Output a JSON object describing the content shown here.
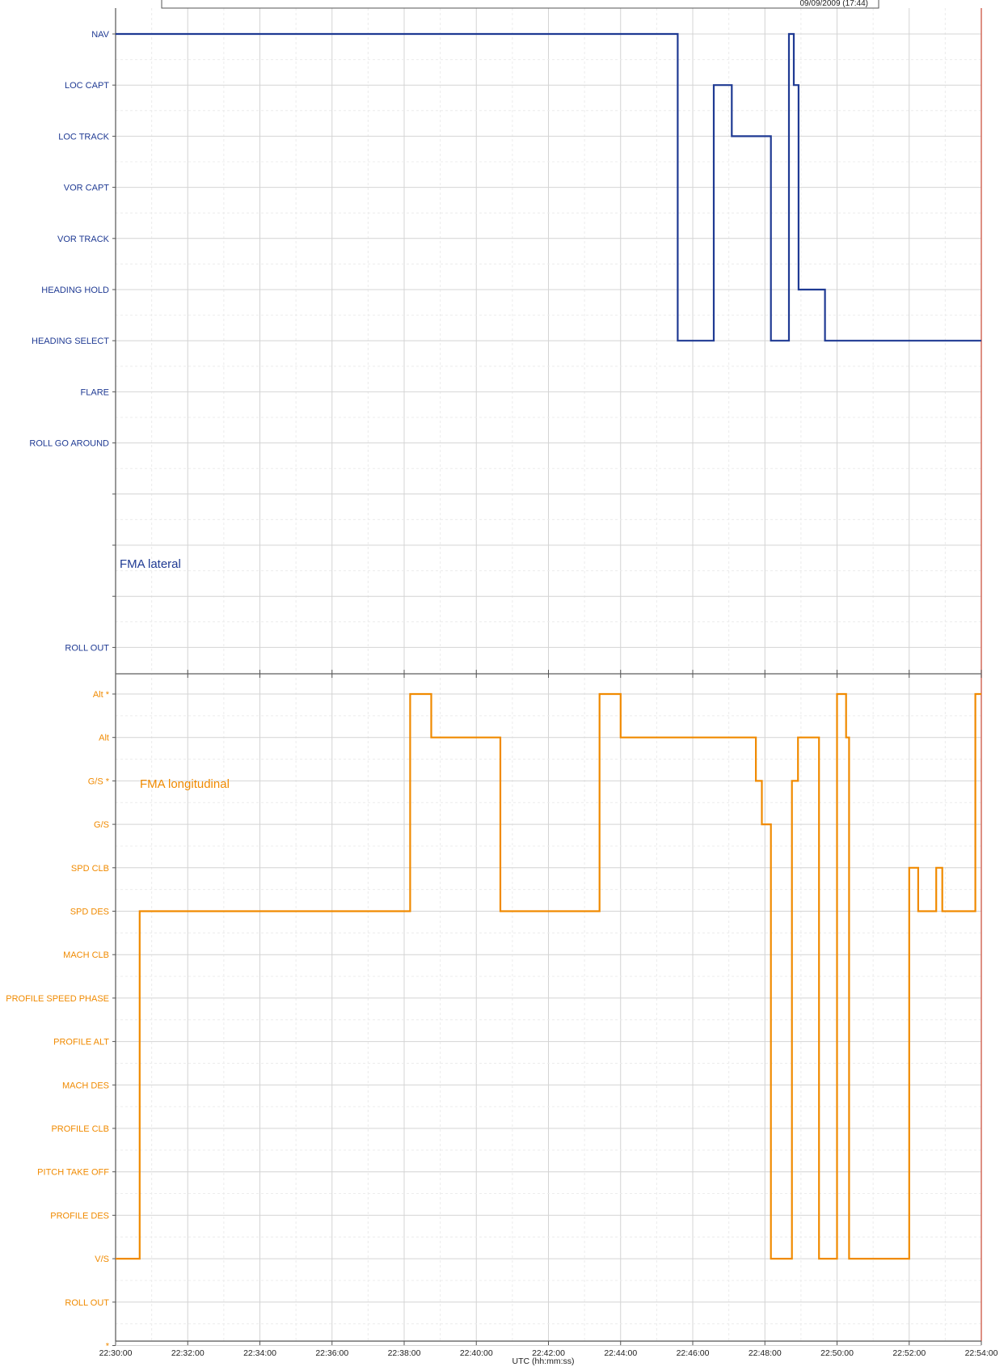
{
  "header": {
    "date_stamp": "09/09/2009 (17:44)"
  },
  "chart_data": [
    {
      "type": "line",
      "title": "FMA lateral",
      "color": "#1f3a93",
      "step": true,
      "y_categories": [
        "NAV",
        "LOC CAPT",
        "LOC TRACK",
        "VOR CAPT",
        "VOR TRACK",
        "HEADING HOLD",
        "HEADING SELECT",
        "FLARE",
        "ROLL GO AROUND",
        "",
        "",
        "",
        "ROLL OUT"
      ],
      "x_unit": "UTC (hh:mm:ss)",
      "xlim": [
        "22:30:00",
        "22:54:00"
      ],
      "series": [
        {
          "points": [
            [
              "22:30:00",
              "NAV"
            ],
            [
              "22:45:35",
              "NAV"
            ],
            [
              "22:45:35",
              "HEADING SELECT"
            ],
            [
              "22:46:35",
              "HEADING SELECT"
            ],
            [
              "22:46:35",
              "LOC CAPT"
            ],
            [
              "22:47:05",
              "LOC CAPT"
            ],
            [
              "22:47:05",
              "LOC TRACK"
            ],
            [
              "22:48:10",
              "LOC TRACK"
            ],
            [
              "22:48:10",
              "HEADING SELECT"
            ],
            [
              "22:48:40",
              "HEADING SELECT"
            ],
            [
              "22:48:40",
              "NAV"
            ],
            [
              "22:48:48",
              "NAV"
            ],
            [
              "22:48:48",
              "LOC CAPT"
            ],
            [
              "22:48:56",
              "LOC CAPT"
            ],
            [
              "22:48:56",
              "HEADING HOLD"
            ],
            [
              "22:49:40",
              "HEADING HOLD"
            ],
            [
              "22:49:40",
              "HEADING SELECT"
            ],
            [
              "22:54:00",
              "HEADING SELECT"
            ]
          ]
        }
      ]
    },
    {
      "type": "line",
      "title": "FMA longitudinal",
      "color": "#f08a00",
      "step": true,
      "y_categories": [
        "Alt *",
        "Alt",
        "G/S *",
        "G/S",
        "SPD CLB",
        "SPD DES",
        "MACH CLB",
        "PROFILE SPEED PHASE",
        "PROFILE ALT",
        "MACH DES",
        "PROFILE CLB",
        "PITCH TAKE OFF",
        "PROFILE DES",
        "V/S",
        "ROLL OUT",
        "*"
      ],
      "x_unit": "UTC (hh:mm:ss)",
      "xlim": [
        "22:30:00",
        "22:54:00"
      ],
      "xticks": [
        "22:30:00",
        "22:32:00",
        "22:34:00",
        "22:36:00",
        "22:38:00",
        "22:40:00",
        "22:42:00",
        "22:44:00",
        "22:46:00",
        "22:48:00",
        "22:50:00",
        "22:52:00",
        "22:54:00"
      ],
      "series": [
        {
          "points": [
            [
              "22:30:00",
              "V/S"
            ],
            [
              "22:30:40",
              "V/S"
            ],
            [
              "22:30:40",
              "SPD DES"
            ],
            [
              "22:38:10",
              "SPD DES"
            ],
            [
              "22:38:10",
              "Alt *"
            ],
            [
              "22:38:45",
              "Alt *"
            ],
            [
              "22:38:45",
              "Alt"
            ],
            [
              "22:40:40",
              "Alt"
            ],
            [
              "22:40:40",
              "SPD DES"
            ],
            [
              "22:43:25",
              "SPD DES"
            ],
            [
              "22:43:25",
              "Alt *"
            ],
            [
              "22:44:00",
              "Alt *"
            ],
            [
              "22:44:00",
              "Alt"
            ],
            [
              "22:47:45",
              "Alt"
            ],
            [
              "22:47:45",
              "G/S *"
            ],
            [
              "22:47:55",
              "G/S *"
            ],
            [
              "22:47:55",
              "G/S"
            ],
            [
              "22:48:10",
              "G/S"
            ],
            [
              "22:48:10",
              "V/S"
            ],
            [
              "22:48:45",
              "V/S"
            ],
            [
              "22:48:45",
              "G/S *"
            ],
            [
              "22:48:55",
              "G/S *"
            ],
            [
              "22:48:55",
              "Alt"
            ],
            [
              "22:49:30",
              "Alt"
            ],
            [
              "22:49:30",
              "V/S"
            ],
            [
              "22:50:00",
              "V/S"
            ],
            [
              "22:50:00",
              "Alt *"
            ],
            [
              "22:50:15",
              "Alt *"
            ],
            [
              "22:50:15",
              "Alt"
            ],
            [
              "22:50:20",
              "Alt"
            ],
            [
              "22:50:20",
              "V/S"
            ],
            [
              "22:52:00",
              "V/S"
            ],
            [
              "22:52:00",
              "SPD CLB"
            ],
            [
              "22:52:15",
              "SPD CLB"
            ],
            [
              "22:52:15",
              "SPD DES"
            ],
            [
              "22:52:45",
              "SPD DES"
            ],
            [
              "22:52:45",
              "SPD CLB"
            ],
            [
              "22:52:55",
              "SPD CLB"
            ],
            [
              "22:52:55",
              "SPD DES"
            ],
            [
              "22:53:50",
              "SPD DES"
            ],
            [
              "22:53:50",
              "Alt *"
            ],
            [
              "22:54:00",
              "Alt *"
            ]
          ]
        }
      ]
    }
  ]
}
